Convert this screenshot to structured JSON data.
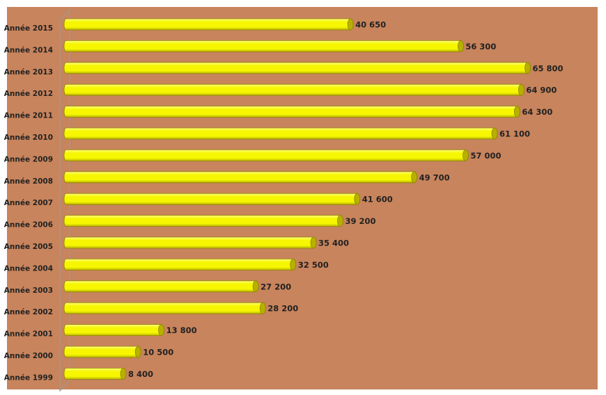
{
  "colors": {
    "plot_background": "#C8845C",
    "bar_fill": "#F6F600",
    "bar_highlight": "#FFFF80",
    "bar_shade": "#B7B000",
    "bar_outline": "#8E8600",
    "axis": "#9A9A9A",
    "text": "#222222"
  },
  "chart_data": {
    "type": "bar",
    "orientation": "horizontal",
    "title": "",
    "xlabel": "",
    "ylabel": "",
    "grid": false,
    "legend": "none",
    "xlim": [
      0,
      70000
    ],
    "categories": [
      "Année 2015",
      "Année 2014",
      "Année 2013",
      "Année 2012",
      "Année 2011",
      "Année 2010",
      "Année 2009",
      "Année 2008",
      "Année 2007",
      "Année 2006",
      "Année 2005",
      "Année 2004",
      "Année 2003",
      "Année 2002",
      "Année 2001",
      "Année 2000",
      "Année 1999"
    ],
    "values": [
      40650,
      56300,
      65800,
      64900,
      64300,
      61100,
      57000,
      49700,
      41600,
      39200,
      35400,
      32500,
      27200,
      28200,
      13800,
      10500,
      8400
    ],
    "value_labels": [
      "40 650",
      "56 300",
      "65 800",
      "64 900",
      "64 300",
      "61 100",
      "57 000",
      "49 700",
      "41 600",
      "39 200",
      "35 400",
      "32 500",
      "27 200",
      "28 200",
      "13 800",
      "10 500",
      "8 400"
    ]
  }
}
